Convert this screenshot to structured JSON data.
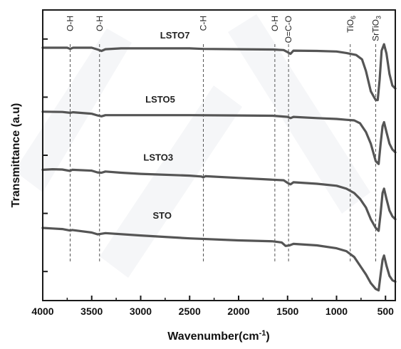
{
  "chart_data": {
    "type": "line",
    "title": "",
    "xlabel": "Wavenumber(cm",
    "xlabel_sup": "-1",
    "xlabel_close": ")",
    "ylabel": "Transmittance (a.u)",
    "xlim": [
      4000,
      400
    ],
    "x_reversed": true,
    "x_ticks": [
      4000,
      3500,
      3000,
      2500,
      2000,
      1500,
      1000,
      500
    ],
    "y_tick_labels_shown": false,
    "grid": false,
    "line_color": "#555555",
    "series": [
      {
        "name": "LSTO7",
        "baseline_level": 0.87,
        "points": [
          [
            4000,
            0.87
          ],
          [
            3750,
            0.87
          ],
          [
            3720,
            0.866
          ],
          [
            3690,
            0.87
          ],
          [
            3500,
            0.87
          ],
          [
            3440,
            0.864
          ],
          [
            3400,
            0.859
          ],
          [
            3360,
            0.865
          ],
          [
            3200,
            0.868
          ],
          [
            2500,
            0.868
          ],
          [
            2360,
            0.866
          ],
          [
            2000,
            0.865
          ],
          [
            1650,
            0.864
          ],
          [
            1540,
            0.862
          ],
          [
            1500,
            0.855
          ],
          [
            1470,
            0.849
          ],
          [
            1440,
            0.86
          ],
          [
            1200,
            0.859
          ],
          [
            1000,
            0.857
          ],
          [
            900,
            0.852
          ],
          [
            800,
            0.845
          ],
          [
            740,
            0.83
          ],
          [
            700,
            0.79
          ],
          [
            650,
            0.72
          ],
          [
            600,
            0.69
          ],
          [
            580,
            0.69
          ],
          [
            560,
            0.76
          ],
          [
            540,
            0.86
          ],
          [
            515,
            0.882
          ],
          [
            490,
            0.85
          ],
          [
            460,
            0.78
          ],
          [
            430,
            0.74
          ],
          [
            400,
            0.73
          ]
        ]
      },
      {
        "name": "LSTO5",
        "baseline_level": 0.65,
        "points": [
          [
            4000,
            0.65
          ],
          [
            3800,
            0.649
          ],
          [
            3720,
            0.646
          ],
          [
            3690,
            0.648
          ],
          [
            3500,
            0.643
          ],
          [
            3440,
            0.637
          ],
          [
            3400,
            0.634
          ],
          [
            3360,
            0.638
          ],
          [
            3000,
            0.638
          ],
          [
            2500,
            0.638
          ],
          [
            2000,
            0.637
          ],
          [
            1650,
            0.636
          ],
          [
            1500,
            0.632
          ],
          [
            1470,
            0.628
          ],
          [
            1440,
            0.632
          ],
          [
            1200,
            0.628
          ],
          [
            1000,
            0.625
          ],
          [
            900,
            0.622
          ],
          [
            820,
            0.62
          ],
          [
            760,
            0.61
          ],
          [
            700,
            0.58
          ],
          [
            650,
            0.54
          ],
          [
            600,
            0.48
          ],
          [
            570,
            0.47
          ],
          [
            550,
            0.54
          ],
          [
            530,
            0.6
          ],
          [
            515,
            0.614
          ],
          [
            490,
            0.58
          ],
          [
            460,
            0.54
          ],
          [
            430,
            0.52
          ],
          [
            400,
            0.51
          ]
        ]
      },
      {
        "name": "LSTO3",
        "baseline_level": 0.45,
        "points": [
          [
            4000,
            0.45
          ],
          [
            3900,
            0.452
          ],
          [
            3800,
            0.451
          ],
          [
            3720,
            0.446
          ],
          [
            3700,
            0.45
          ],
          [
            3500,
            0.447
          ],
          [
            3440,
            0.441
          ],
          [
            3400,
            0.44
          ],
          [
            3360,
            0.444
          ],
          [
            3200,
            0.44
          ],
          [
            3000,
            0.436
          ],
          [
            2500,
            0.43
          ],
          [
            2380,
            0.427
          ],
          [
            2360,
            0.424
          ],
          [
            2340,
            0.428
          ],
          [
            2000,
            0.422
          ],
          [
            1650,
            0.416
          ],
          [
            1540,
            0.414
          ],
          [
            1500,
            0.405
          ],
          [
            1470,
            0.4
          ],
          [
            1440,
            0.407
          ],
          [
            1200,
            0.402
          ],
          [
            1000,
            0.395
          ],
          [
            900,
            0.385
          ],
          [
            820,
            0.37
          ],
          [
            760,
            0.35
          ],
          [
            700,
            0.32
          ],
          [
            650,
            0.28
          ],
          [
            600,
            0.25
          ],
          [
            570,
            0.24
          ],
          [
            550,
            0.3
          ],
          [
            530,
            0.37
          ],
          [
            515,
            0.385
          ],
          [
            490,
            0.35
          ],
          [
            460,
            0.31
          ],
          [
            430,
            0.29
          ],
          [
            400,
            0.28
          ]
        ]
      },
      {
        "name": "STO",
        "baseline_level": 0.25,
        "points": [
          [
            4000,
            0.25
          ],
          [
            3900,
            0.248
          ],
          [
            3800,
            0.246
          ],
          [
            3720,
            0.241
          ],
          [
            3700,
            0.243
          ],
          [
            3500,
            0.234
          ],
          [
            3440,
            0.228
          ],
          [
            3400,
            0.23
          ],
          [
            3360,
            0.232
          ],
          [
            3000,
            0.224
          ],
          [
            2500,
            0.214
          ],
          [
            2000,
            0.207
          ],
          [
            1650,
            0.204
          ],
          [
            1560,
            0.2
          ],
          [
            1520,
            0.188
          ],
          [
            1480,
            0.19
          ],
          [
            1440,
            0.195
          ],
          [
            1200,
            0.19
          ],
          [
            1000,
            0.18
          ],
          [
            900,
            0.17
          ],
          [
            820,
            0.15
          ],
          [
            760,
            0.12
          ],
          [
            700,
            0.09
          ],
          [
            650,
            0.06
          ],
          [
            600,
            0.04
          ],
          [
            570,
            0.035
          ],
          [
            550,
            0.09
          ],
          [
            530,
            0.14
          ],
          [
            515,
            0.155
          ],
          [
            490,
            0.12
          ],
          [
            460,
            0.085
          ],
          [
            430,
            0.07
          ],
          [
            400,
            0.065
          ]
        ]
      }
    ],
    "bands": [
      {
        "label": "O-H",
        "wavenumber": 3720
      },
      {
        "label": "O-H",
        "wavenumber": 3420
      },
      {
        "label": "C-H",
        "wavenumber": 2360
      },
      {
        "label": "O-H",
        "wavenumber": 1630
      },
      {
        "label": "O=C-O",
        "wavenumber": 1490
      },
      {
        "label": "TiO",
        "sub": "6",
        "wavenumber": 860
      },
      {
        "label": "SrTiO",
        "sub": "3",
        "wavenumber": 600
      }
    ]
  }
}
